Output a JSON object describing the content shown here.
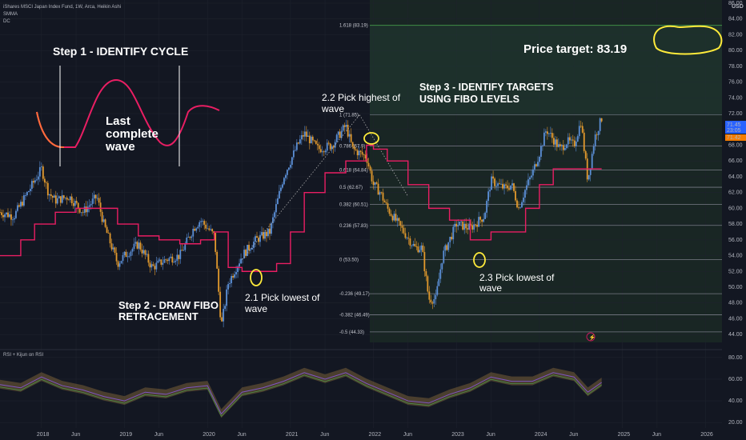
{
  "header": {
    "symbol_line": "iShares MSCI Japan Index Fund, 1W, Arca, Heikin Ashi",
    "indicator1": "SMMA",
    "indicator2": "DC",
    "currency": "USD",
    "rsi_label": "RSI + Kijun on RSI"
  },
  "annotations": {
    "step1": "Step 1 - IDENTIFY CYCLE",
    "last_wave_l1": "Last",
    "last_wave_l2": "complete",
    "last_wave_l3": "wave",
    "step2_l1": "Step 2 - DRAW FIBO",
    "step2_l2": "RETRACEMENT",
    "p21_l1": "2.1 Pick lowest of",
    "p21_l2": "wave",
    "p22_l1": "2.2 Pick highest of",
    "p22_l2": "wave",
    "step3_l1": "Step 3 - IDENTIFY TARGETS",
    "step3_l2": "USING FIBO LEVELS",
    "p23_l1": "2.3 Pick lowest of",
    "p23_l2": "wave",
    "price_target": "Price target: 83.19"
  },
  "price_badges": {
    "b1": "71.45",
    "b2": "23:05",
    "b3": "71.42"
  },
  "colors": {
    "background": "#131722",
    "highlight_zone": "#1c2a26",
    "candle_up": "#5b8fd6",
    "candle_down": "#e39a2d",
    "smma": "#e91e63",
    "fib_line": "#787b86",
    "target_line": "#4caf50",
    "circle": "#ffeb3b",
    "badge_blue": "#2962ff",
    "badge_orange": "#f57c00",
    "rsi_line": "#7e57c2",
    "rsi_fill": "#8d6e3f"
  },
  "chart_data": {
    "type": "line",
    "x_unit": "date",
    "y_unit": "USD",
    "ylim": [
      43,
      86
    ],
    "y_ticks": [
      "44.00",
      "46.00",
      "48.00",
      "50.00",
      "52.00",
      "54.00",
      "56.00",
      "58.00",
      "60.00",
      "62.00",
      "64.00",
      "66.00",
      "68.00",
      "70.00",
      "72.00",
      "74.00",
      "76.00",
      "78.00",
      "80.00",
      "82.00",
      "84.00",
      "86.00"
    ],
    "x_ticks": [
      "2018",
      "Jun",
      "2019",
      "Jun",
      "2020",
      "Jun",
      "2021",
      "Jun",
      "2022",
      "Jun",
      "2023",
      "Jun",
      "2024",
      "Jun",
      "2025",
      "Jun",
      "2026"
    ],
    "x_tick_dates": [
      "2018-01",
      "2018-06",
      "2019-01",
      "2019-06",
      "2020-01",
      "2020-06",
      "2021-01",
      "2021-06",
      "2022-01",
      "2022-06",
      "2023-01",
      "2023-06",
      "2024-01",
      "2024-06",
      "2025-01",
      "2025-06",
      "2026-01"
    ],
    "series": [
      {
        "role": "price_close",
        "points": [
          [
            "2017-07",
            59.5
          ],
          [
            "2017-09",
            59.0
          ],
          [
            "2017-11",
            62.0
          ],
          [
            "2018-01",
            65.0
          ],
          [
            "2018-02",
            62.0
          ],
          [
            "2018-03",
            61.0
          ],
          [
            "2018-05",
            61.5
          ],
          [
            "2018-07",
            59.5
          ],
          [
            "2018-09",
            61.5
          ],
          [
            "2018-10",
            58.0
          ],
          [
            "2018-12",
            53.0
          ],
          [
            "2019-01",
            54.0
          ],
          [
            "2019-03",
            55.5
          ],
          [
            "2019-05",
            52.5
          ],
          [
            "2019-07",
            53.5
          ],
          [
            "2019-09",
            54.0
          ],
          [
            "2019-11",
            57.5
          ],
          [
            "2019-12",
            58.5
          ],
          [
            "2020-02",
            56.5
          ],
          [
            "2020-03",
            45.0
          ],
          [
            "2020-04",
            50.5
          ],
          [
            "2020-06",
            54.0
          ],
          [
            "2020-08",
            56.0
          ],
          [
            "2020-10",
            57.0
          ],
          [
            "2020-12",
            64.0
          ],
          [
            "2021-02",
            68.0
          ],
          [
            "2021-03",
            69.5
          ],
          [
            "2021-05",
            67.5
          ],
          [
            "2021-07",
            68.0
          ],
          [
            "2021-09",
            70.5
          ],
          [
            "2021-10",
            67.5
          ],
          [
            "2021-12",
            66.5
          ],
          [
            "2022-01",
            63.0
          ],
          [
            "2022-02",
            62.0
          ],
          [
            "2022-03",
            60.0
          ],
          [
            "2022-05",
            57.5
          ],
          [
            "2022-07",
            55.0
          ],
          [
            "2022-08",
            55.0
          ],
          [
            "2022-09",
            48.5
          ],
          [
            "2022-10",
            48.5
          ],
          [
            "2022-11",
            54.0
          ],
          [
            "2022-12",
            56.0
          ],
          [
            "2023-01",
            58.0
          ],
          [
            "2023-03",
            57.5
          ],
          [
            "2023-05",
            59.0
          ],
          [
            "2023-06",
            63.5
          ],
          [
            "2023-08",
            62.5
          ],
          [
            "2023-09",
            63.0
          ],
          [
            "2023-10",
            60.0
          ],
          [
            "2023-11",
            62.5
          ],
          [
            "2023-12",
            64.5
          ],
          [
            "2024-01",
            67.0
          ],
          [
            "2024-02",
            70.0
          ],
          [
            "2024-04",
            67.5
          ],
          [
            "2024-05",
            68.5
          ],
          [
            "2024-06",
            68.0
          ],
          [
            "2024-07",
            71.0
          ],
          [
            "2024-08",
            63.5
          ],
          [
            "2024-09",
            69.0
          ],
          [
            "2024-10",
            71.4
          ]
        ]
      },
      {
        "role": "SMMA",
        "points": [
          [
            "2017-07",
            54.0
          ],
          [
            "2017-10",
            56.0
          ],
          [
            "2017-12",
            58.0
          ],
          [
            "2018-03",
            59.5
          ],
          [
            "2018-06",
            60.0
          ],
          [
            "2018-09",
            60.0
          ],
          [
            "2018-12",
            58.0
          ],
          [
            "2019-03",
            56.5
          ],
          [
            "2019-06",
            56.0
          ],
          [
            "2019-09",
            55.5
          ],
          [
            "2019-12",
            56.0
          ],
          [
            "2020-02",
            57.0
          ],
          [
            "2020-04",
            52.5
          ],
          [
            "2020-06",
            52.0
          ],
          [
            "2020-09",
            52.0
          ],
          [
            "2020-11",
            53.0
          ],
          [
            "2021-01",
            57.0
          ],
          [
            "2021-03",
            62.0
          ],
          [
            "2021-06",
            64.5
          ],
          [
            "2021-09",
            66.0
          ],
          [
            "2021-12",
            68.0
          ],
          [
            "2022-01",
            67.5
          ],
          [
            "2022-03",
            66.0
          ],
          [
            "2022-06",
            63.0
          ],
          [
            "2022-09",
            60.0
          ],
          [
            "2022-12",
            58.5
          ],
          [
            "2023-03",
            56.0
          ],
          [
            "2023-06",
            57.0
          ],
          [
            "2023-09",
            57.0
          ],
          [
            "2023-11",
            60.0
          ],
          [
            "2024-01",
            63.0
          ],
          [
            "2024-03",
            65.0
          ],
          [
            "2024-06",
            65.0
          ],
          [
            "2024-10",
            65.0
          ]
        ]
      },
      {
        "role": "RSI",
        "points": [
          [
            "2017-07",
            55
          ],
          [
            "2017-10",
            52
          ],
          [
            "2018-01",
            62
          ],
          [
            "2018-04",
            54
          ],
          [
            "2018-07",
            50
          ],
          [
            "2018-10",
            44
          ],
          [
            "2019-01",
            40
          ],
          [
            "2019-04",
            48
          ],
          [
            "2019-07",
            46
          ],
          [
            "2019-10",
            52
          ],
          [
            "2020-01",
            54
          ],
          [
            "2020-03",
            28
          ],
          [
            "2020-06",
            48
          ],
          [
            "2020-09",
            52
          ],
          [
            "2020-12",
            58
          ],
          [
            "2021-03",
            66
          ],
          [
            "2021-06",
            60
          ],
          [
            "2021-09",
            66
          ],
          [
            "2021-12",
            56
          ],
          [
            "2022-03",
            48
          ],
          [
            "2022-06",
            40
          ],
          [
            "2022-09",
            38
          ],
          [
            "2022-12",
            46
          ],
          [
            "2023-03",
            52
          ],
          [
            "2023-06",
            62
          ],
          [
            "2023-09",
            58
          ],
          [
            "2023-12",
            58
          ],
          [
            "2024-03",
            66
          ],
          [
            "2024-06",
            62
          ],
          [
            "2024-08",
            48
          ],
          [
            "2024-10",
            57
          ]
        ]
      }
    ],
    "rsi_ylim": [
      15,
      85
    ],
    "rsi_ticks": [
      "20.00",
      "40.00",
      "60.00",
      "80.00"
    ],
    "fib": [
      {
        "label": "1.618 (83.19)",
        "value": 83.19,
        "target": true
      },
      {
        "label": "1 (71.85)",
        "value": 71.85
      },
      {
        "label": "0.786 (67.9)",
        "value": 67.9
      },
      {
        "label": "0.618 (64.84)",
        "value": 64.84
      },
      {
        "label": "0.5 (62.67)",
        "value": 62.67
      },
      {
        "label": "0.382 (60.51)",
        "value": 60.51
      },
      {
        "label": "0.236 (57.83)",
        "value": 57.83
      },
      {
        "label": "0 (53.50)",
        "value": 53.5
      },
      {
        "label": "-0.236 (49.17)",
        "value": 49.17
      },
      {
        "label": "-0.382 (46.49)",
        "value": 46.49
      },
      {
        "label": "-0.5 (44.33)",
        "value": 44.33
      }
    ]
  }
}
